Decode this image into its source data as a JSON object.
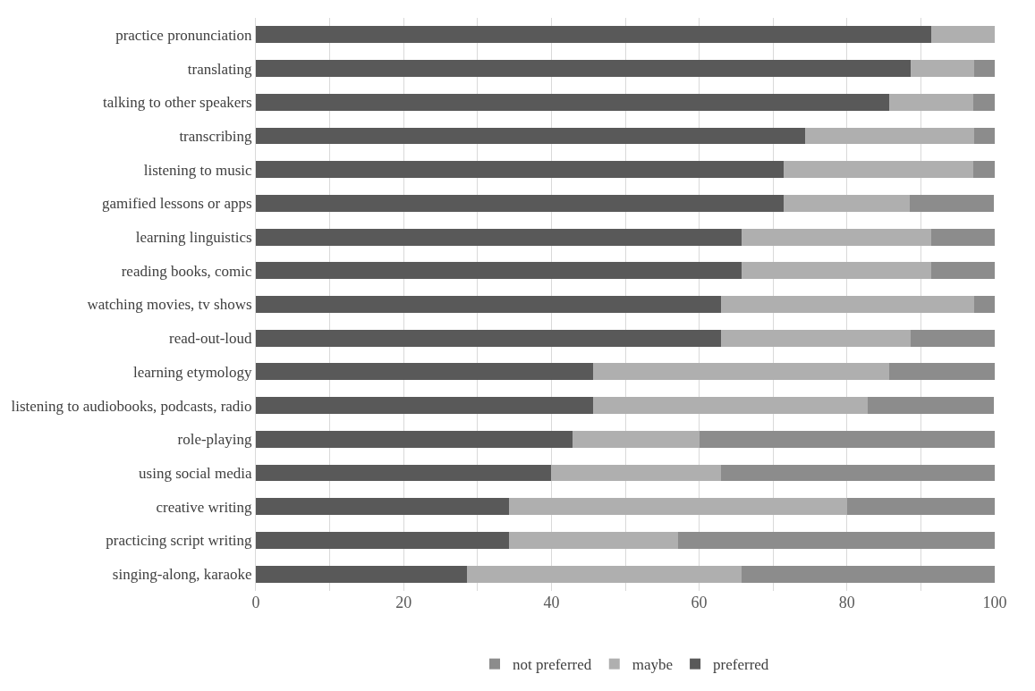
{
  "chart_data": {
    "type": "bar",
    "orientation": "horizontal",
    "stacked": true,
    "categories": [
      "practice pronunciation",
      "translating",
      "talking to other speakers",
      "transcribing",
      "listening to music",
      "gamified lessons or apps",
      "learning linguistics",
      "reading books, comic",
      "watching movies, tv shows",
      "read-out-loud",
      "learning etymology",
      "listening to audiobooks, podcasts, radio",
      "role-playing",
      "using social media",
      "creative writing",
      "practicing script writing",
      "singing-along, karaoke"
    ],
    "series": [
      {
        "name": "preferred",
        "color": "#595959",
        "values": [
          91.4,
          88.6,
          85.7,
          74.3,
          71.4,
          71.4,
          65.7,
          65.7,
          62.9,
          62.9,
          45.7,
          45.7,
          42.9,
          40.0,
          34.3,
          34.3,
          28.6
        ]
      },
      {
        "name": "maybe",
        "color": "#afafaf",
        "values": [
          8.6,
          8.6,
          11.4,
          22.9,
          25.7,
          17.1,
          25.7,
          25.7,
          34.3,
          25.7,
          40.0,
          37.1,
          17.1,
          22.9,
          45.7,
          22.9,
          37.1
        ]
      },
      {
        "name": "not preferred",
        "color": "#8c8c8c",
        "values": [
          0,
          2.9,
          2.9,
          2.9,
          2.9,
          11.4,
          8.6,
          8.6,
          2.9,
          11.4,
          14.3,
          17.1,
          40.0,
          37.1,
          20.0,
          42.9,
          34.3
        ]
      }
    ],
    "xlim": [
      0,
      100
    ],
    "xticks": [
      0,
      {
        "value": 10,
        "label": null
      },
      20,
      {
        "value": 30,
        "label": null
      },
      40,
      {
        "value": 50,
        "label": null
      },
      60,
      {
        "value": 70,
        "label": null
      },
      80,
      {
        "value": 90,
        "label": null
      },
      100
    ],
    "grid": "x",
    "legend": "bottom"
  }
}
